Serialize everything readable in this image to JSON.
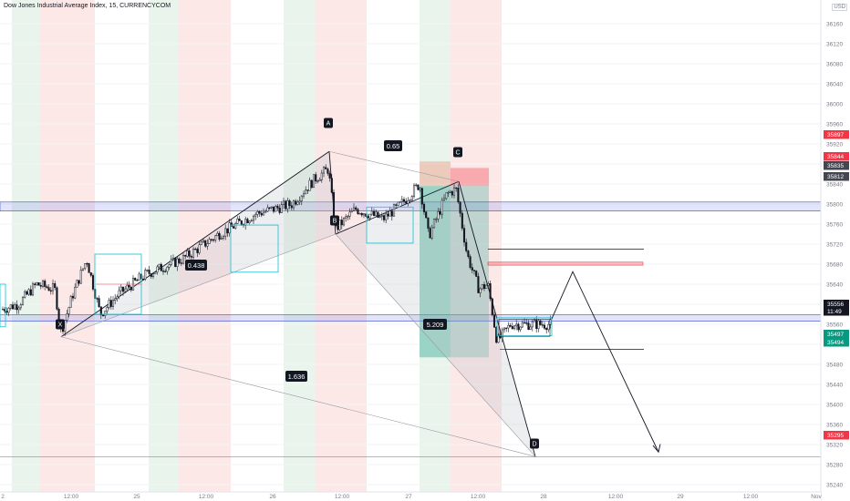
{
  "header": {
    "title": "Dow Jones Industrial Average Index, 15, CURRENCYCOM",
    "currency": "USD"
  },
  "chart_data": {
    "type": "candlestick",
    "y_axis": {
      "ticks": [
        36160,
        36120,
        36080,
        36040,
        36000,
        35960,
        35920,
        35880,
        35840,
        35800,
        35760,
        35720,
        35680,
        35640,
        35600,
        35560,
        35520,
        35480,
        35440,
        35400,
        35360,
        35320,
        35280,
        35240,
        35200
      ]
    },
    "x_axis": {
      "ticks": [
        "2",
        "12:00",
        "25",
        "12:00",
        "26",
        "12:00",
        "27",
        "12:00",
        "28",
        "12:00",
        "29",
        "12:00",
        "Nov"
      ]
    },
    "pattern_points": {
      "X": {
        "label": "X",
        "price": 35535
      },
      "A": {
        "label": "A",
        "price": 35905
      },
      "B": {
        "label": "B",
        "price": 35740
      },
      "C": {
        "label": "C",
        "price": 35845
      },
      "D": {
        "label": "D",
        "price": 35296
      }
    },
    "ratios": {
      "ab": "0.65",
      "xb": "0.438",
      "bd": "5.209",
      "xd": "1.636"
    },
    "price_tags": [
      {
        "value": "35897",
        "color": "#f23645"
      },
      {
        "value": "35844",
        "color": "#f23645"
      },
      {
        "value": "35835",
        "color": "#434651"
      },
      {
        "value": "35812",
        "color": "#434651"
      },
      {
        "value": "35556",
        "color": "#131722"
      },
      {
        "value": "11:49",
        "color": "#131722"
      },
      {
        "value": "35497",
        "color": "#089981"
      },
      {
        "value": "35494",
        "color": "#089981"
      },
      {
        "value": "35295",
        "color": "#f23645"
      }
    ]
  }
}
